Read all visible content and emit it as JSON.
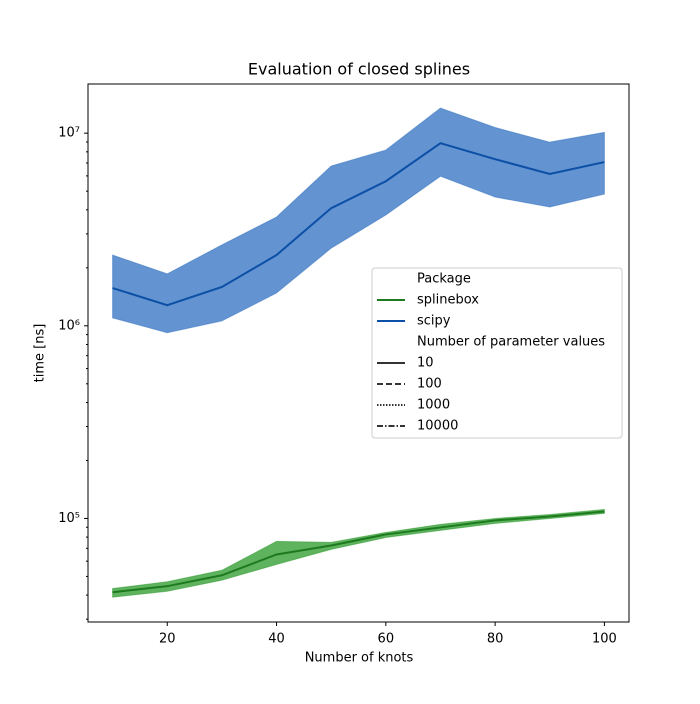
{
  "chart_data": {
    "type": "line",
    "title": "Evaluation of closed splines",
    "xlabel": "Number of knots",
    "ylabel": "time [ns]",
    "x": [
      10,
      20,
      30,
      40,
      50,
      60,
      70,
      80,
      90,
      100
    ],
    "xlim": [
      5.5,
      104.5
    ],
    "xticks": [
      20,
      40,
      60,
      80,
      100
    ],
    "yscale": "log",
    "ylim": [
      29000,
      18000000
    ],
    "yticks": [
      {
        "value": 100000,
        "label": "10⁵"
      },
      {
        "value": 1000000,
        "label": "10⁶"
      },
      {
        "value": 10000000,
        "label": "10⁷"
      }
    ],
    "yminorticks": [
      30000,
      40000,
      50000,
      60000,
      70000,
      80000,
      90000,
      200000,
      300000,
      400000,
      500000,
      600000,
      700000,
      800000,
      900000,
      2000000,
      3000000,
      4000000,
      5000000,
      6000000,
      7000000,
      8000000,
      9000000
    ],
    "series": [
      {
        "name": "splinebox",
        "color": "#2a9a2a",
        "line_color": "#1e7a1e",
        "values": [
          41400,
          44500,
          50700,
          65000,
          72400,
          82600,
          89800,
          97700,
          102400,
          108700
        ],
        "upper": [
          43300,
          46900,
          53800,
          76000,
          75100,
          84600,
          93100,
          100000,
          104900,
          111300
        ],
        "lower": [
          39000,
          41900,
          47800,
          57700,
          69100,
          79600,
          86700,
          94200,
          100000,
          106200
        ]
      },
      {
        "name": "scipy",
        "color": "#2f6fc0",
        "line_color": "#0b4fa6",
        "values": [
          1570000,
          1280000,
          1590000,
          2330000,
          4080000,
          5630000,
          8870000,
          7330000,
          6140000,
          7080000
        ],
        "upper": [
          2330000,
          1860000,
          2630000,
          3670000,
          6750000,
          8170000,
          13500000,
          10700000,
          8980000,
          10100000
        ],
        "lower": [
          1100000,
          920000,
          1060000,
          1480000,
          2530000,
          3760000,
          5980000,
          4660000,
          4140000,
          4830000
        ]
      }
    ],
    "legend": {
      "hue_title": "Package",
      "style_title": "Number of parameter values",
      "styles": [
        {
          "label": "10",
          "dash": "none"
        },
        {
          "label": "100",
          "dash": "6 3"
        },
        {
          "label": "1000",
          "dash": "1.5 1.5"
        },
        {
          "label": "10000",
          "dash": "6 2 1.5 2"
        }
      ],
      "style_color": "#333333"
    }
  }
}
